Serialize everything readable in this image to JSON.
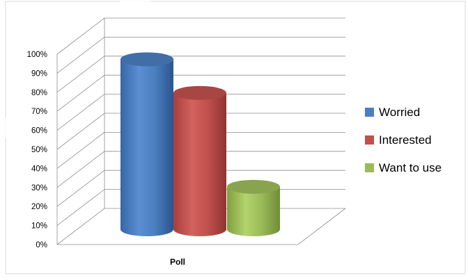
{
  "chart_data": {
    "type": "bar",
    "style": "3d-cylinder",
    "categories": [
      "Poll"
    ],
    "xlabel": "Poll",
    "ylim": [
      0,
      100
    ],
    "y_ticks": [
      "0%",
      "10%",
      "20%",
      "30%",
      "40%",
      "50%",
      "60%",
      "70%",
      "80%",
      "90%",
      "100%"
    ],
    "grid": true,
    "legend_position": "right",
    "series": [
      {
        "name": "Worried",
        "values": [
          96
        ],
        "color": "#4a7ebf"
      },
      {
        "name": "Interested",
        "values": [
          77
        ],
        "color": "#c0504d"
      },
      {
        "name": "Want to use",
        "values": [
          24
        ],
        "color": "#9bbb59"
      }
    ]
  }
}
